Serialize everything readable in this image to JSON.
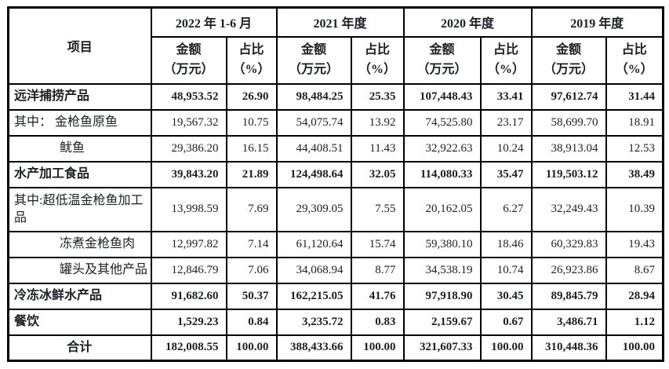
{
  "colors": {
    "background": "#ffffff",
    "border": "#000000",
    "text": "#1b1e26"
  },
  "table": {
    "corner_header": "项目",
    "period_headers": [
      "2022 年 1-6 月",
      "2021 年度",
      "2020 年度",
      "2019 年度"
    ],
    "amount_header": "金额",
    "amount_header_unit": "（万元）",
    "ratio_header": "占比",
    "ratio_header_unit": "（%）",
    "rows": [
      {
        "label": "远洋捕捞产品",
        "bold": true,
        "indent": false,
        "center": false,
        "tall": false,
        "values": [
          "48,953.52",
          "26.90",
          "98,484.25",
          "25.35",
          "107,448.43",
          "33.41",
          "97,612.74",
          "31.44"
        ]
      },
      {
        "label": "其中： 金枪鱼原鱼",
        "bold": false,
        "indent": false,
        "center": false,
        "tall": false,
        "values": [
          "19,567.32",
          "10.75",
          "54,075.74",
          "13.92",
          "74,525.80",
          "23.17",
          "58,699.70",
          "18.91"
        ]
      },
      {
        "label": "鱿鱼",
        "bold": false,
        "indent": true,
        "center": false,
        "tall": false,
        "values": [
          "29,386.20",
          "16.15",
          "44,408.51",
          "11.43",
          "32,922.63",
          "10.24",
          "38,913.04",
          "12.53"
        ]
      },
      {
        "label": "水产加工食品",
        "bold": true,
        "indent": false,
        "center": false,
        "tall": false,
        "values": [
          "39,843.20",
          "21.89",
          "124,498.64",
          "32.05",
          "114,080.33",
          "35.47",
          "119,503.12",
          "38.49"
        ]
      },
      {
        "label": "其中:超低温金枪鱼加工品",
        "bold": false,
        "indent": false,
        "center": false,
        "tall": true,
        "values": [
          "13,998.59",
          "7.69",
          "29,309.05",
          "7.55",
          "20,162.05",
          "6.27",
          "32,249.43",
          "10.39"
        ]
      },
      {
        "label": "冻煮金枪鱼肉",
        "bold": false,
        "indent": true,
        "center": false,
        "tall": false,
        "values": [
          "12,997.82",
          "7.14",
          "61,120.64",
          "15.74",
          "59,380.10",
          "18.46",
          "60,329.83",
          "19.43"
        ]
      },
      {
        "label": "罐头及其他产品",
        "bold": false,
        "indent": true,
        "center": false,
        "tall": false,
        "values": [
          "12,846.79",
          "7.06",
          "34,068.94",
          "8.77",
          "34,538.19",
          "10.74",
          "26,923.86",
          "8.67"
        ]
      },
      {
        "label": "冷冻冰鲜水产品",
        "bold": true,
        "indent": false,
        "center": false,
        "tall": false,
        "values": [
          "91,682.60",
          "50.37",
          "162,215.05",
          "41.76",
          "97,918.90",
          "30.45",
          "89,845.79",
          "28.94"
        ]
      },
      {
        "label": "餐饮",
        "bold": true,
        "indent": false,
        "center": false,
        "tall": false,
        "values": [
          "1,529.23",
          "0.84",
          "3,235.72",
          "0.83",
          "2,159.67",
          "0.67",
          "3,486.71",
          "1.12"
        ]
      },
      {
        "label": "合计",
        "bold": true,
        "indent": false,
        "center": true,
        "tall": false,
        "values": [
          "182,008.55",
          "100.00",
          "388,433.66",
          "100.00",
          "321,607.33",
          "100.00",
          "310,448.36",
          "100.00"
        ]
      }
    ]
  }
}
